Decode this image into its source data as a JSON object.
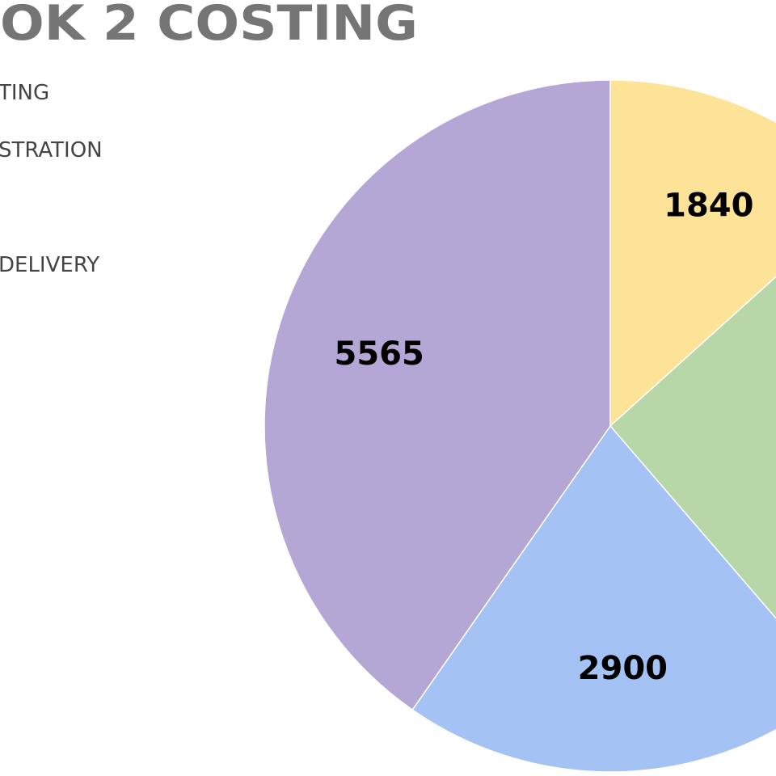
{
  "chart_data": {
    "type": "pie",
    "title": "OK 2 COSTING",
    "categories": [
      "TING",
      "STRATION",
      null,
      "DELIVERY"
    ],
    "values": [
      1840,
      3500,
      2900,
      5565
    ],
    "colors": [
      "#fde398",
      "#b7d7a8",
      "#a4c2f4",
      "#b4a7d6"
    ]
  }
}
